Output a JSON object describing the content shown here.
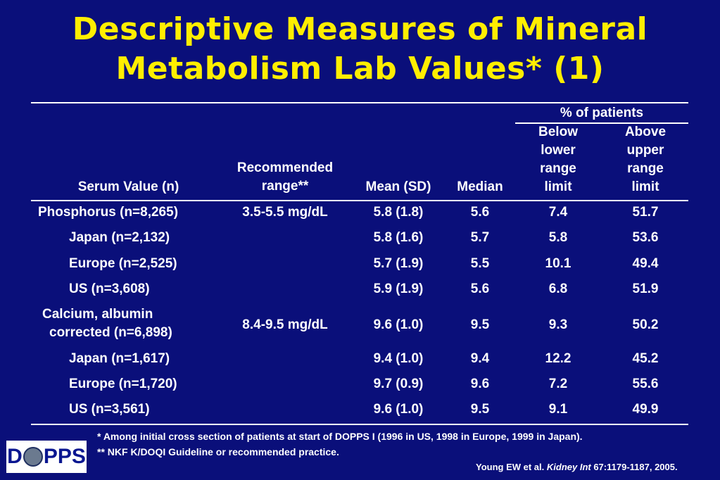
{
  "title": {
    "line1": "Descriptive Measures of Mineral",
    "line2": "Metabolism Lab Values* (1)"
  },
  "table": {
    "group_header": "% of patients",
    "headers": {
      "serum": "Serum Value (n)",
      "rec_line1": "Recommended",
      "rec_line2": "range**",
      "mean": "Mean (SD)",
      "median": "Median",
      "below": [
        "Below",
        "lower",
        "range",
        "limit"
      ],
      "above": [
        "Above",
        "upper",
        "range",
        "limit"
      ]
    },
    "rows": [
      {
        "name": "Phosphorus (n=8,265)",
        "name2": "",
        "range": "3.5-5.5 mg/dL",
        "mean": "5.8 (1.8)",
        "median": "5.6",
        "below": "7.4",
        "above": "51.7"
      },
      {
        "name": "Japan (n=2,132)",
        "name2": "",
        "range": "",
        "mean": "5.8 (1.6)",
        "median": "5.7",
        "below": "5.8",
        "above": "53.6"
      },
      {
        "name": "Europe (n=2,525)",
        "name2": "",
        "range": "",
        "mean": "5.7 (1.9)",
        "median": "5.5",
        "below": "10.1",
        "above": "49.4"
      },
      {
        "name": "US (n=3,608)",
        "name2": "",
        "range": "",
        "mean": "5.9 (1.9)",
        "median": "5.6",
        "below": "6.8",
        "above": "51.9"
      },
      {
        "name": "Calcium, albumin",
        "name2": "corrected (n=6,898)",
        "range": "8.4-9.5 mg/dL",
        "mean": "9.6 (1.0)",
        "median": "9.5",
        "below": "9.3",
        "above": "50.2"
      },
      {
        "name": "Japan (n=1,617)",
        "name2": "",
        "range": "",
        "mean": "9.4 (1.0)",
        "median": "9.4",
        "below": "12.2",
        "above": "45.2"
      },
      {
        "name": "Europe (n=1,720)",
        "name2": "",
        "range": "",
        "mean": "9.7 (0.9)",
        "median": "9.6",
        "below": "7.2",
        "above": "55.6"
      },
      {
        "name": "US (n=3,561)",
        "name2": "",
        "range": "",
        "mean": "9.6 (1.0)",
        "median": "9.5",
        "below": "9.1",
        "above": "49.9"
      }
    ]
  },
  "footnotes": {
    "note1": "* Among initial cross section of patients at start of DOPPS I (1996 in US, 1998 in Europe, 1999 in Japan).",
    "note2": "** NKF K/DOQI Guideline or recommended practice.",
    "citation_pre": "Young EW et al. ",
    "citation_journal": "Kidney Int",
    "citation_post": " 67:1179-1187, 2005."
  },
  "logo": {
    "left": "D",
    "right": "PPS"
  },
  "colors": {
    "background": "#0a0f7a",
    "title": "#ffee00",
    "text": "#ffffff"
  }
}
